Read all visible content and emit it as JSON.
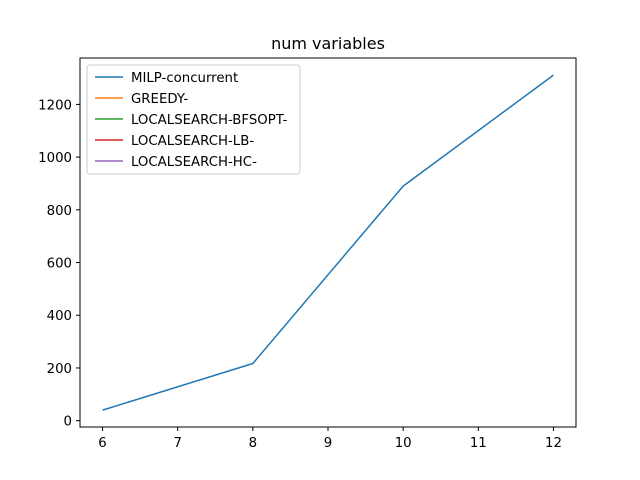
{
  "chart_data": {
    "type": "line",
    "title": "num variables",
    "xlabel": "",
    "ylabel": "",
    "xlim": [
      5.7,
      12.3
    ],
    "ylim": [
      -24,
      1376
    ],
    "xticks": [
      6,
      7,
      8,
      9,
      10,
      11,
      12
    ],
    "yticks": [
      0,
      200,
      400,
      600,
      800,
      1000,
      1200
    ],
    "grid": false,
    "legend_position": "top-left",
    "series": [
      {
        "name": "MILP-concurrent",
        "color": "#1f77b4",
        "x": [
          6,
          8,
          10,
          12
        ],
        "y": [
          40,
          217,
          890,
          1311
        ]
      },
      {
        "name": "GREEDY-",
        "color": "#ff7f0e",
        "x": [],
        "y": []
      },
      {
        "name": "LOCALSEARCH-BFSOPT-",
        "color": "#2ca02c",
        "x": [],
        "y": []
      },
      {
        "name": "LOCALSEARCH-LB-",
        "color": "#d62728",
        "x": [],
        "y": []
      },
      {
        "name": "LOCALSEARCH-HC-",
        "color": "#9467bd",
        "x": [],
        "y": []
      }
    ]
  }
}
